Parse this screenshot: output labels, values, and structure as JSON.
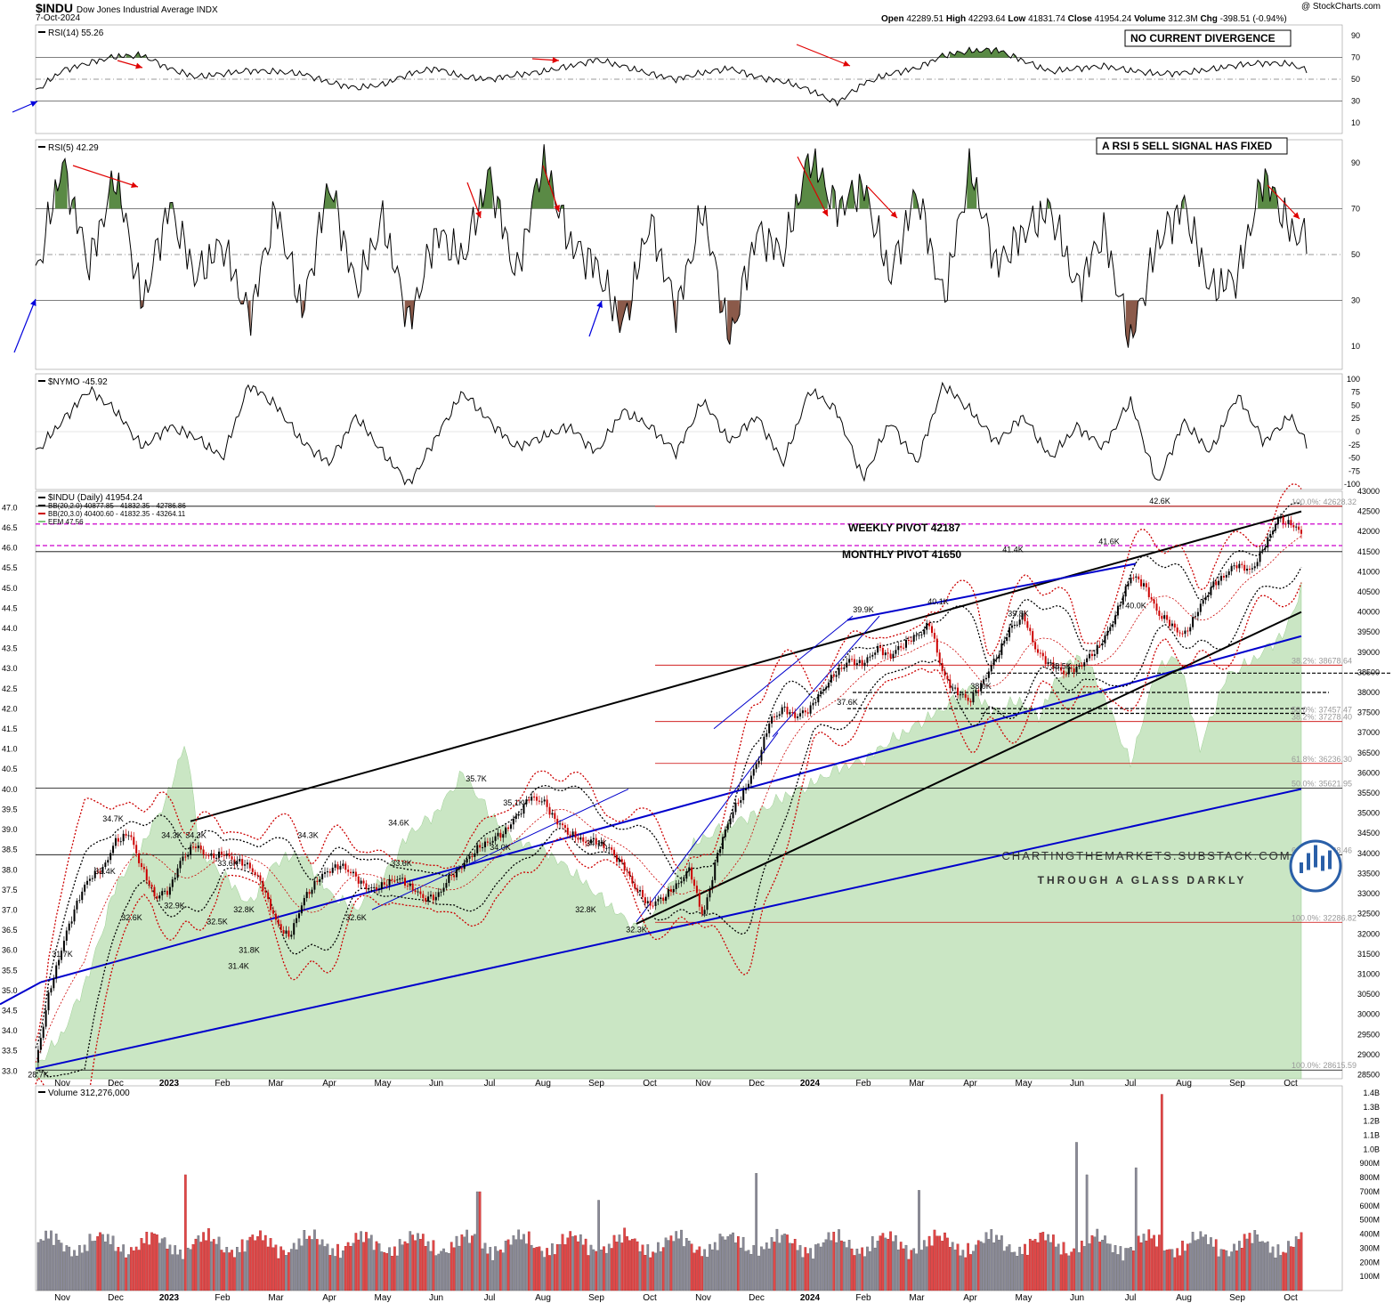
{
  "header": {
    "symbol": "$INDU",
    "name": "Dow Jones Industrial Average INDX",
    "date": "7-Oct-2024",
    "copyright": "@ StockCharts.com",
    "ohlc": [
      {
        "k": "Open",
        "v": "42289.51"
      },
      {
        "k": "High",
        "v": "42293.64"
      },
      {
        "k": "Low",
        "v": "41831.74"
      },
      {
        "k": "Close",
        "v": "41954.24"
      },
      {
        "k": "Volume",
        "v": "312.3M"
      },
      {
        "k": "Chg",
        "v": "-398.51 (-0.94%)"
      }
    ]
  },
  "colors": {
    "up": "#000000",
    "down": "#cc0000",
    "ema": "#7fc47f",
    "pivot": "#cc00cc",
    "blue": "#0000cc",
    "fill_green": "#5a8a45",
    "fill_brown": "#8b5a4a"
  },
  "chart_data": [
    {
      "type": "line",
      "panel": "rsi14",
      "label": "RSI(14) 55.26",
      "annotation": "NO CURRENT DIVERGENCE",
      "ylim": [
        0,
        100
      ],
      "yticks": [
        10,
        30,
        50,
        70,
        90
      ],
      "ref_lines": [
        30,
        50,
        70
      ],
      "months": [
        10.5,
        11,
        11.5,
        12,
        12.5,
        13,
        13.5,
        14,
        14.5,
        15,
        15.5,
        16,
        16.5,
        17,
        17.5,
        18,
        18.5,
        19,
        19.5,
        20,
        20.5,
        21,
        21.5,
        22,
        22.5,
        23,
        23.5,
        24,
        24.5,
        25,
        25.5,
        26,
        26.5,
        27,
        27.5,
        28,
        28.5,
        29,
        29.5,
        30,
        30.5,
        31,
        31.5,
        32,
        32.5,
        33,
        33.5,
        34,
        34.5,
        35,
        35.5,
        36,
        36.5,
        37,
        37.5,
        38,
        38.5,
        39,
        39.5,
        40,
        40.5,
        41,
        41.5,
        42,
        42.5,
        43,
        43.5,
        44,
        44.5,
        45,
        45.5,
        46
      ],
      "values": [
        39,
        58,
        65,
        71,
        72,
        60,
        52,
        55,
        58,
        57,
        55,
        47,
        42,
        45,
        55,
        60,
        52,
        50,
        54,
        57,
        62,
        68,
        62,
        55,
        50,
        56,
        60,
        52,
        48,
        40,
        28,
        46,
        55,
        60,
        72,
        76,
        77,
        67,
        57,
        60,
        62,
        58,
        55,
        56,
        59,
        63,
        65,
        64,
        54,
        40,
        38,
        52,
        60,
        62,
        56,
        44,
        47,
        45,
        60,
        78,
        72,
        56,
        48,
        60,
        66,
        54,
        57,
        64,
        65,
        70,
        66,
        55
      ]
    },
    {
      "type": "line",
      "panel": "rsi5",
      "label": "RSI(5) 42.29",
      "annotation": "A RSI 5 SELL SIGNAL HAS FIXED",
      "ylim": [
        0,
        100
      ],
      "yticks": [
        10,
        30,
        50,
        70,
        90
      ],
      "ref_lines": [
        30,
        50,
        70
      ],
      "months": [
        10.5,
        11,
        11.5,
        12,
        12.5,
        13,
        13.5,
        14,
        14.5,
        15,
        15.5,
        16,
        16.5,
        17,
        17.5,
        18,
        18.5,
        19,
        19.5,
        20,
        20.5,
        21,
        21.5,
        22,
        22.5,
        23,
        23.5,
        24,
        24.5,
        25,
        25.5,
        26,
        26.5,
        27,
        27.5,
        28,
        28.5,
        29,
        29.5,
        30,
        30.5,
        31,
        31.5,
        32,
        32.5,
        33,
        33.5,
        34,
        34.5,
        35,
        35.5,
        36,
        36.5,
        37,
        37.5,
        38,
        38.5,
        39,
        39.5,
        40,
        40.5,
        41,
        41.5,
        42,
        42.5,
        43,
        43.5,
        44,
        44.5,
        45,
        45.5,
        46
      ],
      "values": [
        40,
        90,
        45,
        85,
        28,
        72,
        40,
        55,
        22,
        70,
        25,
        82,
        35,
        65,
        20,
        60,
        48,
        85,
        40,
        92,
        55,
        45,
        18,
        65,
        25,
        70,
        12,
        60,
        50,
        93,
        70,
        80,
        40,
        78,
        30,
        88,
        45,
        60,
        70,
        35,
        60,
        12,
        55,
        72,
        35,
        40,
        85,
        60,
        55,
        18,
        75,
        92,
        55,
        20,
        68,
        45,
        60,
        58,
        85,
        55,
        70,
        40,
        66,
        50,
        45,
        70,
        32,
        60,
        82,
        70,
        55,
        44
      ]
    },
    {
      "type": "line",
      "panel": "nymo",
      "label": "$NYMO -45.92",
      "ylim": [
        -110,
        110
      ],
      "yticks": [
        -100,
        -75,
        -50,
        -25,
        0,
        25,
        50,
        75,
        100
      ],
      "months": [
        10.5,
        11,
        11.5,
        12,
        12.5,
        13,
        13.5,
        14,
        14.5,
        15,
        15.5,
        16,
        16.5,
        17,
        17.5,
        18,
        18.5,
        19,
        19.5,
        20,
        20.5,
        21,
        21.5,
        22,
        22.5,
        23,
        23.5,
        24,
        24.5,
        25,
        25.5,
        26,
        26.5,
        27,
        27.5,
        28,
        28.5,
        29,
        29.5,
        30,
        30.5,
        31,
        31.5,
        32,
        32.5,
        33,
        33.5,
        34,
        34.5,
        35,
        35.5,
        36,
        36.5,
        37,
        37.5,
        38,
        38.5,
        39,
        39.5,
        40,
        40.5,
        41,
        41.5,
        42,
        42.5,
        43,
        43.5,
        44,
        44.5,
        45,
        45.5,
        46
      ],
      "values": [
        -40,
        20,
        80,
        40,
        -30,
        10,
        -10,
        -50,
        90,
        50,
        -20,
        -60,
        30,
        -40,
        -100,
        -10,
        75,
        20,
        -30,
        -10,
        10,
        -40,
        40,
        10,
        -40,
        60,
        -20,
        30,
        -60,
        80,
        40,
        -90,
        20,
        -60,
        90,
        40,
        -20,
        30,
        -50,
        10,
        -30,
        60,
        -100,
        20,
        -40,
        70,
        -20,
        30,
        -60,
        10,
        -40,
        20,
        80,
        -10,
        -70,
        20,
        40,
        -20,
        10,
        80,
        -20,
        -70,
        50,
        -40,
        60,
        10,
        -20,
        40,
        70,
        20,
        -30,
        -46
      ]
    },
    {
      "type": "candlestick",
      "panel": "price",
      "legend": [
        "$INDU (Daily) 41954.24",
        "BB(20,2.0) 40877.85 - 41832.35 - 42786.86",
        "BB(20,3.0) 40400.60 - 41832.35 - 43264.11",
        "EEM 47.56"
      ],
      "ylim": [
        28400,
        43000
      ],
      "yticks_right": [
        28500,
        29000,
        29500,
        30000,
        30500,
        31000,
        31500,
        32000,
        32500,
        33000,
        33500,
        34000,
        34500,
        35000,
        35500,
        36000,
        36500,
        37000,
        37500,
        38000,
        38500,
        39000,
        39500,
        40000,
        40500,
        41000,
        41500,
        42000,
        42500,
        43000
      ],
      "yticks_left": [
        "33.0",
        "33.5",
        "34.0",
        "34.5",
        "35.0",
        "35.5",
        "36.0",
        "36.5",
        "37.0",
        "37.5",
        "38.0",
        "38.5",
        "39.0",
        "39.5",
        "40.0",
        "40.5",
        "41.0",
        "41.5",
        "42.0",
        "42.5",
        "43.0",
        "43.5",
        "44.0",
        "44.5",
        "45.0",
        "45.5",
        "46.0",
        "46.5",
        "47.0"
      ],
      "x_labels": [
        "Nov",
        "Dec",
        "2023",
        "Feb",
        "Mar",
        "Apr",
        "May",
        "Jun",
        "Jul",
        "Aug",
        "Sep",
        "Oct",
        "Nov",
        "Dec",
        "2024",
        "Feb",
        "Mar",
        "Apr",
        "May",
        "Jun",
        "Jul",
        "Aug",
        "Sep",
        "Oct"
      ],
      "x_months": [
        11,
        12,
        13,
        14,
        15,
        16,
        17,
        18,
        19,
        20,
        21,
        22,
        23,
        24,
        25,
        26,
        27,
        28,
        29,
        30,
        31,
        32,
        33,
        34
      ],
      "close_months": [
        10.5,
        10.75,
        11,
        11.25,
        11.5,
        11.75,
        12,
        12.25,
        12.5,
        12.75,
        13,
        13.25,
        13.5,
        13.75,
        14,
        14.25,
        14.5,
        14.75,
        15,
        15.25,
        15.5,
        15.75,
        16,
        16.25,
        16.5,
        16.75,
        17,
        17.25,
        17.5,
        17.75,
        18,
        18.25,
        18.5,
        18.75,
        19,
        19.25,
        19.5,
        19.75,
        20,
        20.25,
        20.5,
        20.75,
        21,
        21.25,
        21.5,
        21.75,
        22,
        22.25,
        22.5,
        22.75,
        23,
        23.25,
        23.5,
        23.75,
        24,
        24.25,
        24.5,
        24.75,
        25,
        25.25,
        25.5,
        25.75,
        26,
        26.25,
        26.5,
        26.75,
        27,
        27.25,
        27.5,
        27.75,
        28,
        28.25,
        28.5,
        28.75,
        29,
        29.25,
        29.5,
        29.75,
        30,
        30.25,
        30.5,
        30.75,
        31,
        31.25,
        31.5,
        31.75,
        32,
        32.25,
        32.5,
        32.75,
        33,
        33.25,
        33.5,
        33.75,
        34,
        34.2
      ],
      "closes": [
        28750,
        30500,
        31700,
        32700,
        33400,
        33600,
        34300,
        34500,
        33600,
        32900,
        33100,
        33900,
        34200,
        33900,
        34000,
        33800,
        33700,
        33200,
        32300,
        31900,
        32800,
        33300,
        33600,
        33700,
        33400,
        33100,
        33200,
        33400,
        33200,
        32900,
        32900,
        33400,
        33700,
        34100,
        34300,
        34500,
        34900,
        35400,
        35300,
        34800,
        34500,
        34300,
        34300,
        34100,
        33700,
        33100,
        32700,
        32900,
        33200,
        33600,
        32400,
        33900,
        34900,
        35500,
        36200,
        37300,
        37600,
        37400,
        37600,
        38100,
        38500,
        38800,
        38700,
        39100,
        38900,
        39200,
        39400,
        39700,
        38400,
        38000,
        37800,
        38300,
        38900,
        39600,
        39900,
        39000,
        38700,
        38500,
        38600,
        38900,
        39300,
        40000,
        40900,
        40700,
        40000,
        39700,
        39400,
        40000,
        40600,
        40900,
        41200,
        41000,
        41600,
        42300,
        42200,
        41954
      ],
      "labels": [
        {
          "m": 10.55,
          "v": 28700,
          "t": "28.7K"
        },
        {
          "m": 11.0,
          "v": 31700,
          "t": "31.7K"
        },
        {
          "m": 11.95,
          "v": 34700,
          "t": "34.7K"
        },
        {
          "m": 11.8,
          "v": 33400,
          "t": "33.4K"
        },
        {
          "m": 12.3,
          "v": 32600,
          "t": "32.6K"
        },
        {
          "m": 13.05,
          "v": 34300,
          "t": "34.3K"
        },
        {
          "m": 13.1,
          "v": 32900,
          "t": "32.9K"
        },
        {
          "m": 13.5,
          "v": 34300,
          "t": "34.3K"
        },
        {
          "m": 14.1,
          "v": 33600,
          "t": "33.6K"
        },
        {
          "m": 13.9,
          "v": 32500,
          "t": "32.5K"
        },
        {
          "m": 14.4,
          "v": 32800,
          "t": "32.8K"
        },
        {
          "m": 14.5,
          "v": 31800,
          "t": "31.8K"
        },
        {
          "m": 14.3,
          "v": 31400,
          "t": "31.4K"
        },
        {
          "m": 15.6,
          "v": 34300,
          "t": "34.3K"
        },
        {
          "m": 16.5,
          "v": 32600,
          "t": "32.6K"
        },
        {
          "m": 17.3,
          "v": 34600,
          "t": "34.6K"
        },
        {
          "m": 17.35,
          "v": 33600,
          "t": "33.6K"
        },
        {
          "m": 18.75,
          "v": 35700,
          "t": "35.7K"
        },
        {
          "m": 19.45,
          "v": 35100,
          "t": "35.1K"
        },
        {
          "m": 19.2,
          "v": 34000,
          "t": "34.0K"
        },
        {
          "m": 20.8,
          "v": 32800,
          "t": "32.8K"
        },
        {
          "m": 21.0,
          "v": 34100,
          "t": "34.1K"
        },
        {
          "m": 21.75,
          "v": 32300,
          "t": "32.3K"
        },
        {
          "m": 26.0,
          "v": 39900,
          "t": "39.9K"
        },
        {
          "m": 25.7,
          "v": 37600,
          "t": "37.6K"
        },
        {
          "m": 27.4,
          "v": 40100,
          "t": "40.1K"
        },
        {
          "m": 28.2,
          "v": 38000,
          "t": "38.0K"
        },
        {
          "m": 28.9,
          "v": 39800,
          "t": "39.8K"
        },
        {
          "m": 28.8,
          "v": 41400,
          "t": "41.4K"
        },
        {
          "m": 29.7,
          "v": 38500,
          "t": "38.5K"
        },
        {
          "m": 30.6,
          "v": 41600,
          "t": "41.6K"
        },
        {
          "m": 31.1,
          "v": 40000,
          "t": "40.0K"
        },
        {
          "m": 31.55,
          "v": 42600,
          "t": "42.6K"
        }
      ],
      "pivots": [
        {
          "t": "WEEKLY PIVOT 42187",
          "v": 42187
        },
        {
          "t": "MONTHLY PIVOT 41650",
          "v": 41650
        }
      ],
      "fib_labels": [
        {
          "t": "100.0%: 42628.32",
          "v": 42628
        },
        {
          "t": "38.2%: 38678.64",
          "v": 38679
        },
        {
          "t": "50.0%: 37457.47",
          "v": 37457
        },
        {
          "t": "38.2%: 37278.40",
          "v": 37278
        },
        {
          "t": "61.8%: 36236.30",
          "v": 36236
        },
        {
          "t": "50.0%: 35621.95",
          "v": 35622
        },
        {
          "t": "61.8%: 33968.46",
          "v": 33968
        },
        {
          "t": "100.0%: 32286.82",
          "v": 32287
        },
        {
          "t": "100.0%: 28615.59",
          "v": 28616
        }
      ],
      "watermark": {
        "line1": "CHARTINGTHEMARKETS.SUBSTACK.COM",
        "line2": "THROUGH A GLASS DARKLY"
      }
    },
    {
      "type": "bar",
      "panel": "volume",
      "label": "Volume 312,276,000",
      "ylim": [
        0,
        1450
      ],
      "yticks": [
        "100M",
        "200M",
        "300M",
        "400M",
        "500M",
        "600M",
        "700M",
        "800M",
        "900M",
        "1.0B",
        "1.1B",
        "1.2B",
        "1.3B",
        "1.4B"
      ],
      "ytick_values": [
        100,
        200,
        300,
        400,
        500,
        600,
        700,
        800,
        900,
        1000,
        1100,
        1200,
        1300,
        1400
      ],
      "spikes": [
        {
          "m": 13.3,
          "v": 820
        },
        {
          "m": 18.8,
          "v": 700
        },
        {
          "m": 21.05,
          "v": 640
        },
        {
          "m": 24.0,
          "v": 830
        },
        {
          "m": 27.05,
          "v": 710
        },
        {
          "m": 30.0,
          "v": 1050
        },
        {
          "m": 30.2,
          "v": 820
        },
        {
          "m": 31.1,
          "v": 870
        },
        {
          "m": 31.6,
          "v": 1390
        }
      ]
    }
  ]
}
